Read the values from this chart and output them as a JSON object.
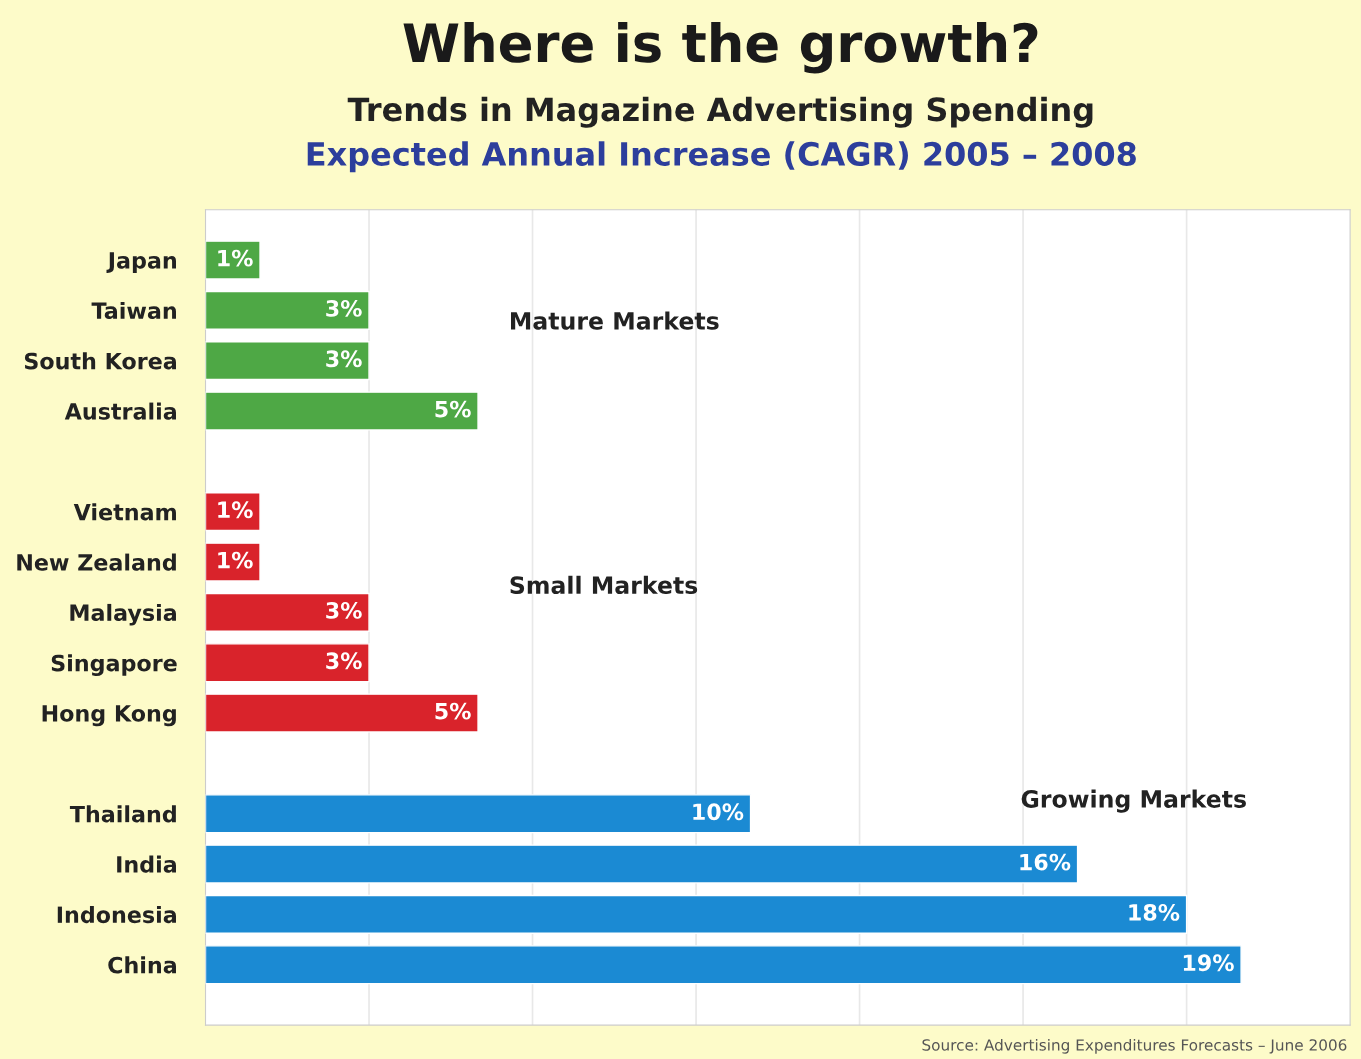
{
  "chart_data": {
    "type": "bar",
    "orientation": "horizontal",
    "title": "Where is the growth?",
    "subtitle": "Trends in Magazine Advertising Spending\nExpected Annual Increase (CAGR) 2005 – 2008",
    "categories": [
      "Japan",
      "Taiwan",
      "South Korea",
      "Australia",
      null,
      "Vietnam",
      "New Zealand",
      "Malaysia",
      "Singapore",
      "Hong Kong",
      null,
      "Thailand",
      "India",
      "Indonesia",
      "China"
    ],
    "values": [
      1,
      3,
      3,
      5,
      null,
      1,
      1,
      3,
      3,
      5,
      null,
      10,
      16,
      18,
      19
    ],
    "value_labels": [
      "1%",
      "3%",
      "3%",
      "5%",
      null,
      "1%",
      "1%",
      "3%",
      "3%",
      "5%",
      null,
      "10%",
      "16%",
      "18%",
      "19%"
    ],
    "colors": [
      "#4ea845",
      "#4ea845",
      "#4ea845",
      "#4ea845",
      null,
      "#d9232b",
      "#d9232b",
      "#d9232b",
      "#d9232b",
      "#d9232b",
      null,
      "#1b8ad3",
      "#1b8ad3",
      "#1b8ad3",
      "#1b8ad3"
    ],
    "xlim": [
      0,
      21
    ],
    "xticks": [
      {
        "value": 3,
        "label": null
      },
      {
        "value": 6,
        "label": null
      },
      {
        "value": 9,
        "label": null
      },
      {
        "value": 12,
        "label": null
      },
      {
        "value": 15,
        "label": null
      },
      {
        "value": 18,
        "label": null
      }
    ],
    "grid": "x",
    "tick_labels": "y",
    "annotations": [
      "Mature Markets",
      "Small Markets",
      "Growing Markets",
      "Source: Advertising Expenditures Forecasts – June 2006"
    ]
  }
}
